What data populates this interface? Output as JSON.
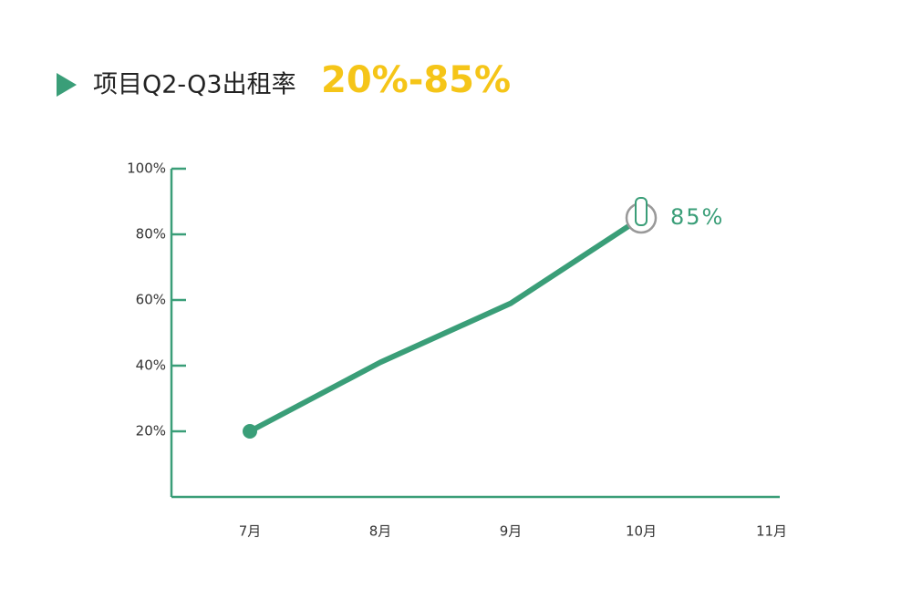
{
  "chart_data": {
    "type": "line",
    "title": "项目Q2-Q3出租率",
    "title_highlight": "20%-85%",
    "categories": [
      "7月",
      "8月",
      "9月",
      "10月",
      "11月"
    ],
    "values": [
      20,
      41,
      59,
      85,
      null
    ],
    "value_labels": [
      null,
      null,
      null,
      "85%",
      null
    ],
    "color": "#3a9e78",
    "highlight_color": "#f5c518",
    "ylim": [
      0,
      100
    ],
    "yticks": [
      {
        "value": 20,
        "label": "20%"
      },
      {
        "value": 40,
        "label": "40%"
      },
      {
        "value": 60,
        "label": "60%"
      },
      {
        "value": 80,
        "label": "80%"
      },
      {
        "value": 100,
        "label": "100%"
      }
    ]
  }
}
